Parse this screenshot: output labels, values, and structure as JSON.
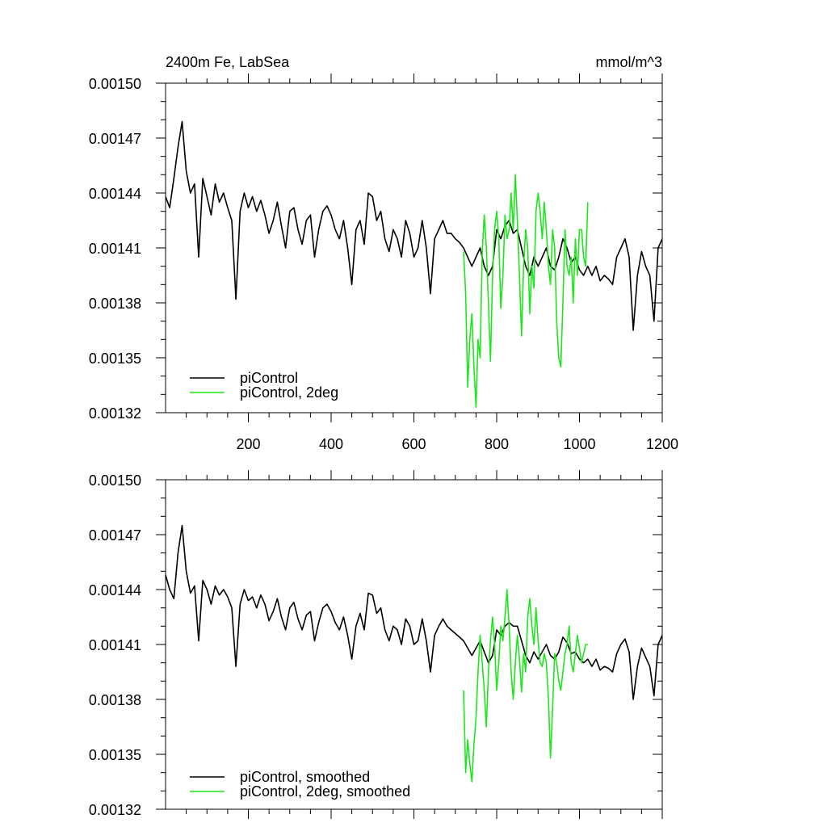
{
  "figure": {
    "title_left": "2400m Fe, LabSea",
    "title_right": "mmol/m^3"
  },
  "colors": {
    "control": "#000000",
    "two_deg": "#1ee61e"
  },
  "chart_data": [
    {
      "type": "line",
      "ylim": [
        0.00132,
        0.0015
      ],
      "xlim": [
        0,
        1200
      ],
      "yticks": [
        "0.00150",
        "0.00147",
        "0.00144",
        "0.00141",
        "0.00138",
        "0.00135",
        "0.00132"
      ],
      "xticks": [
        "200",
        "400",
        "600",
        "800",
        "1000",
        "1200"
      ],
      "xtick_values": [
        200,
        400,
        600,
        800,
        1000,
        1200
      ],
      "series": [
        {
          "name": "piControl",
          "color": "#000000",
          "x": [
            0,
            10,
            20,
            30,
            40,
            50,
            60,
            70,
            80,
            90,
            100,
            110,
            120,
            130,
            140,
            150,
            160,
            170,
            180,
            190,
            200,
            210,
            220,
            230,
            240,
            250,
            260,
            270,
            280,
            290,
            300,
            310,
            320,
            330,
            340,
            350,
            360,
            370,
            380,
            390,
            400,
            410,
            420,
            430,
            440,
            450,
            460,
            470,
            480,
            490,
            500,
            510,
            520,
            530,
            540,
            550,
            560,
            570,
            580,
            590,
            600,
            610,
            620,
            630,
            640,
            650,
            660,
            670,
            680,
            690,
            700,
            710,
            720,
            730,
            740,
            750,
            760,
            770,
            780,
            790,
            800,
            810,
            820,
            830,
            840,
            850,
            860,
            870,
            880,
            890,
            900,
            910,
            920,
            930,
            940,
            950,
            960,
            970,
            980,
            990,
            1000,
            1010,
            1020,
            1030,
            1040,
            1050,
            1060,
            1070,
            1080,
            1090,
            1100,
            1110,
            1120,
            1130,
            1140,
            1150,
            1160,
            1170,
            1180,
            1190,
            1200
          ],
          "y": [
            0.001438,
            0.001432,
            0.001448,
            0.001465,
            0.001479,
            0.001452,
            0.00144,
            0.001445,
            0.001405,
            0.001448,
            0.001438,
            0.001428,
            0.001445,
            0.001435,
            0.00144,
            0.001432,
            0.001425,
            0.001382,
            0.00143,
            0.00144,
            0.001432,
            0.001438,
            0.00143,
            0.001436,
            0.001428,
            0.001418,
            0.001425,
            0.001435,
            0.001422,
            0.00141,
            0.00143,
            0.001432,
            0.00142,
            0.001412,
            0.001425,
            0.001428,
            0.001405,
            0.00142,
            0.00143,
            0.001433,
            0.001428,
            0.00142,
            0.001415,
            0.001425,
            0.00141,
            0.00139,
            0.00142,
            0.001425,
            0.001412,
            0.00144,
            0.001438,
            0.001425,
            0.00143,
            0.001415,
            0.001408,
            0.00142,
            0.001415,
            0.001405,
            0.001425,
            0.001418,
            0.001405,
            0.00141,
            0.001425,
            0.00141,
            0.001385,
            0.001415,
            0.00142,
            0.001425,
            0.001418,
            0.001418,
            0.001415,
            0.001413,
            0.00141,
            0.001405,
            0.0014,
            0.001405,
            0.00141,
            0.0014,
            0.001395,
            0.0014,
            0.00142,
            0.001415,
            0.001422,
            0.001425,
            0.001418,
            0.00142,
            0.00141,
            0.0014,
            0.001395,
            0.001405,
            0.0014,
            0.001405,
            0.00141,
            0.0014,
            0.001398,
            0.001405,
            0.001415,
            0.00141,
            0.001402,
            0.001405,
            0.001398,
            0.001395,
            0.0014,
            0.001395,
            0.0014,
            0.001392,
            0.001395,
            0.001393,
            0.00139,
            0.001405,
            0.00141,
            0.001415,
            0.001405,
            0.001365,
            0.001395,
            0.001408,
            0.0014,
            0.001395,
            0.00137,
            0.00141,
            0.001415
          ]
        },
        {
          "name": "piControl, 2deg",
          "color": "#1ee61e",
          "x": [
            720,
            725,
            730,
            735,
            740,
            745,
            750,
            755,
            760,
            765,
            770,
            775,
            780,
            785,
            790,
            795,
            800,
            805,
            810,
            815,
            820,
            825,
            830,
            835,
            840,
            845,
            850,
            855,
            860,
            865,
            870,
            875,
            880,
            885,
            890,
            895,
            900,
            905,
            910,
            915,
            920,
            925,
            930,
            935,
            940,
            945,
            950,
            955,
            960,
            965,
            970,
            975,
            980,
            985,
            990,
            995,
            1000,
            1005,
            1010,
            1015,
            1020
          ],
          "y": [
            0.001408,
            0.001385,
            0.001334,
            0.00136,
            0.001374,
            0.001345,
            0.001323,
            0.00136,
            0.00135,
            0.001408,
            0.001428,
            0.00141,
            0.00138,
            0.001348,
            0.001395,
            0.00142,
            0.00143,
            0.001415,
            0.001377,
            0.001395,
            0.001428,
            0.001415,
            0.00142,
            0.00144,
            0.00142,
            0.00145,
            0.001425,
            0.001395,
            0.001362,
            0.0014,
            0.00142,
            0.00141,
            0.001374,
            0.0014,
            0.001388,
            0.00143,
            0.00144,
            0.00143,
            0.001415,
            0.001435,
            0.00142,
            0.0014,
            0.00139,
            0.00142,
            0.00141,
            0.00137,
            0.00135,
            0.001345,
            0.00138,
            0.00142,
            0.0014,
            0.001395,
            0.001405,
            0.00138,
            0.001415,
            0.001395,
            0.00142,
            0.00142,
            0.001405,
            0.0014,
            0.001435
          ]
        }
      ]
    },
    {
      "type": "line",
      "ylim": [
        0.00132,
        0.0015
      ],
      "xlim": [
        0,
        1200
      ],
      "yticks": [
        "0.00150",
        "0.00147",
        "0.00144",
        "0.00141",
        "0.00138",
        "0.00135",
        "0.00132"
      ],
      "xtick_values": [
        200,
        400,
        600,
        800,
        1000,
        1200
      ],
      "series": [
        {
          "name": "piControl, smoothed",
          "color": "#000000",
          "x": [
            0,
            10,
            20,
            30,
            40,
            50,
            60,
            70,
            80,
            90,
            100,
            110,
            120,
            130,
            140,
            150,
            160,
            170,
            180,
            190,
            200,
            210,
            220,
            230,
            240,
            250,
            260,
            270,
            280,
            290,
            300,
            310,
            320,
            330,
            340,
            350,
            360,
            370,
            380,
            390,
            400,
            410,
            420,
            430,
            440,
            450,
            460,
            470,
            480,
            490,
            500,
            510,
            520,
            530,
            540,
            550,
            560,
            570,
            580,
            590,
            600,
            610,
            620,
            630,
            640,
            650,
            660,
            670,
            680,
            690,
            700,
            710,
            720,
            730,
            740,
            750,
            760,
            770,
            780,
            790,
            800,
            810,
            820,
            830,
            840,
            850,
            860,
            870,
            880,
            890,
            900,
            910,
            920,
            930,
            940,
            950,
            960,
            970,
            980,
            990,
            1000,
            1010,
            1020,
            1030,
            1040,
            1050,
            1060,
            1070,
            1080,
            1090,
            1100,
            1110,
            1120,
            1130,
            1140,
            1150,
            1160,
            1170,
            1180,
            1190,
            1200
          ],
          "y": [
            0.001448,
            0.00144,
            0.001435,
            0.00146,
            0.001475,
            0.00145,
            0.001438,
            0.001442,
            0.001412,
            0.001445,
            0.00144,
            0.001432,
            0.001442,
            0.001437,
            0.00144,
            0.001436,
            0.00143,
            0.001398,
            0.001432,
            0.00144,
            0.001434,
            0.001436,
            0.00143,
            0.001437,
            0.001432,
            0.001423,
            0.001428,
            0.001435,
            0.001425,
            0.001418,
            0.00143,
            0.001433,
            0.001424,
            0.001418,
            0.001426,
            0.001428,
            0.001412,
            0.001422,
            0.00143,
            0.001432,
            0.001428,
            0.001422,
            0.001418,
            0.001425,
            0.001415,
            0.001402,
            0.00142,
            0.001427,
            0.001418,
            0.001438,
            0.001437,
            0.001427,
            0.00143,
            0.001418,
            0.001412,
            0.00142,
            0.001418,
            0.00141,
            0.001424,
            0.00142,
            0.00141,
            0.001412,
            0.001424,
            0.001412,
            0.001395,
            0.001415,
            0.00142,
            0.001424,
            0.00142,
            0.001418,
            0.001416,
            0.001414,
            0.001412,
            0.001408,
            0.001404,
            0.001408,
            0.001412,
            0.001406,
            0.0014,
            0.001404,
            0.001418,
            0.001415,
            0.00142,
            0.001422,
            0.00142,
            0.00142,
            0.001412,
            0.001404,
            0.0014,
            0.001406,
            0.001402,
            0.001406,
            0.00141,
            0.001404,
            0.001402,
            0.001406,
            0.001414,
            0.001411,
            0.001405,
            0.001406,
            0.001402,
            0.0014,
            0.001402,
            0.001398,
            0.001402,
            0.001396,
            0.001398,
            0.001397,
            0.001395,
            0.001405,
            0.00141,
            0.001413,
            0.001406,
            0.00138,
            0.001398,
            0.001408,
            0.001403,
            0.001398,
            0.001382,
            0.00141,
            0.001415
          ]
        },
        {
          "name": "piControl, 2deg, smoothed",
          "color": "#1ee61e",
          "x": [
            720,
            725,
            730,
            735,
            740,
            745,
            750,
            755,
            760,
            765,
            770,
            775,
            780,
            785,
            790,
            795,
            800,
            805,
            810,
            815,
            820,
            825,
            830,
            835,
            840,
            845,
            850,
            855,
            860,
            865,
            870,
            875,
            880,
            885,
            890,
            895,
            900,
            905,
            910,
            915,
            920,
            925,
            930,
            935,
            940,
            945,
            950,
            955,
            960,
            965,
            970,
            975,
            980,
            985,
            990,
            995,
            1000,
            1005,
            1010,
            1015,
            1020
          ],
          "y": [
            0.001385,
            0.00134,
            0.001358,
            0.001345,
            0.001335,
            0.001355,
            0.00137,
            0.001395,
            0.001415,
            0.0014,
            0.001385,
            0.001365,
            0.001395,
            0.001412,
            0.001425,
            0.00141,
            0.001385,
            0.0014,
            0.00142,
            0.001412,
            0.001425,
            0.00144,
            0.00142,
            0.001395,
            0.00138,
            0.0014,
            0.001415,
            0.001402,
            0.001384,
            0.001405,
            0.001395,
            0.001425,
            0.001435,
            0.00142,
            0.00141,
            0.00143,
            0.001412,
            0.0014,
            0.001398,
            0.001405,
            0.0014,
            0.00138,
            0.001348,
            0.001375,
            0.001405,
            0.0014,
            0.00139,
            0.001385,
            0.001395,
            0.001405,
            0.00141,
            0.00142,
            0.0014,
            0.001395,
            0.001405,
            0.001415,
            0.001408,
            0.0014,
            0.001405,
            0.00141,
            0.00141
          ]
        }
      ]
    }
  ]
}
